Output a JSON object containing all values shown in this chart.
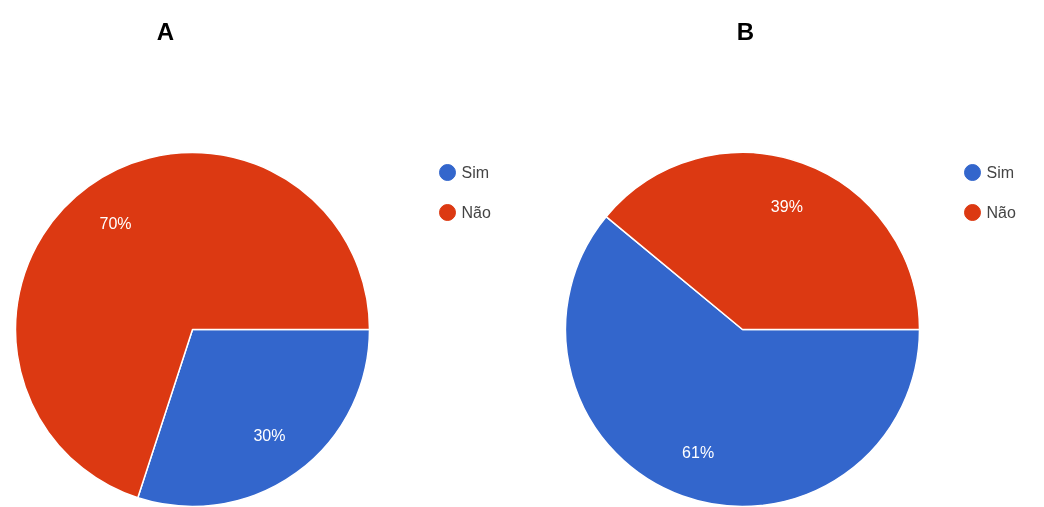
{
  "chart_data": [
    {
      "type": "pie",
      "title": "A",
      "categories": [
        "Sim",
        "Não"
      ],
      "values": [
        30,
        70
      ],
      "colors": [
        "#3366cc",
        "#dc3912"
      ],
      "value_labels": [
        "30%",
        "70%"
      ],
      "legend": "top right"
    },
    {
      "type": "pie",
      "title": "B",
      "categories": [
        "Sim",
        "Não"
      ],
      "values": [
        61,
        39
      ],
      "colors": [
        "#3366cc",
        "#dc3912"
      ],
      "value_labels": [
        "61%",
        "39%"
      ],
      "legend": "top right"
    }
  ]
}
